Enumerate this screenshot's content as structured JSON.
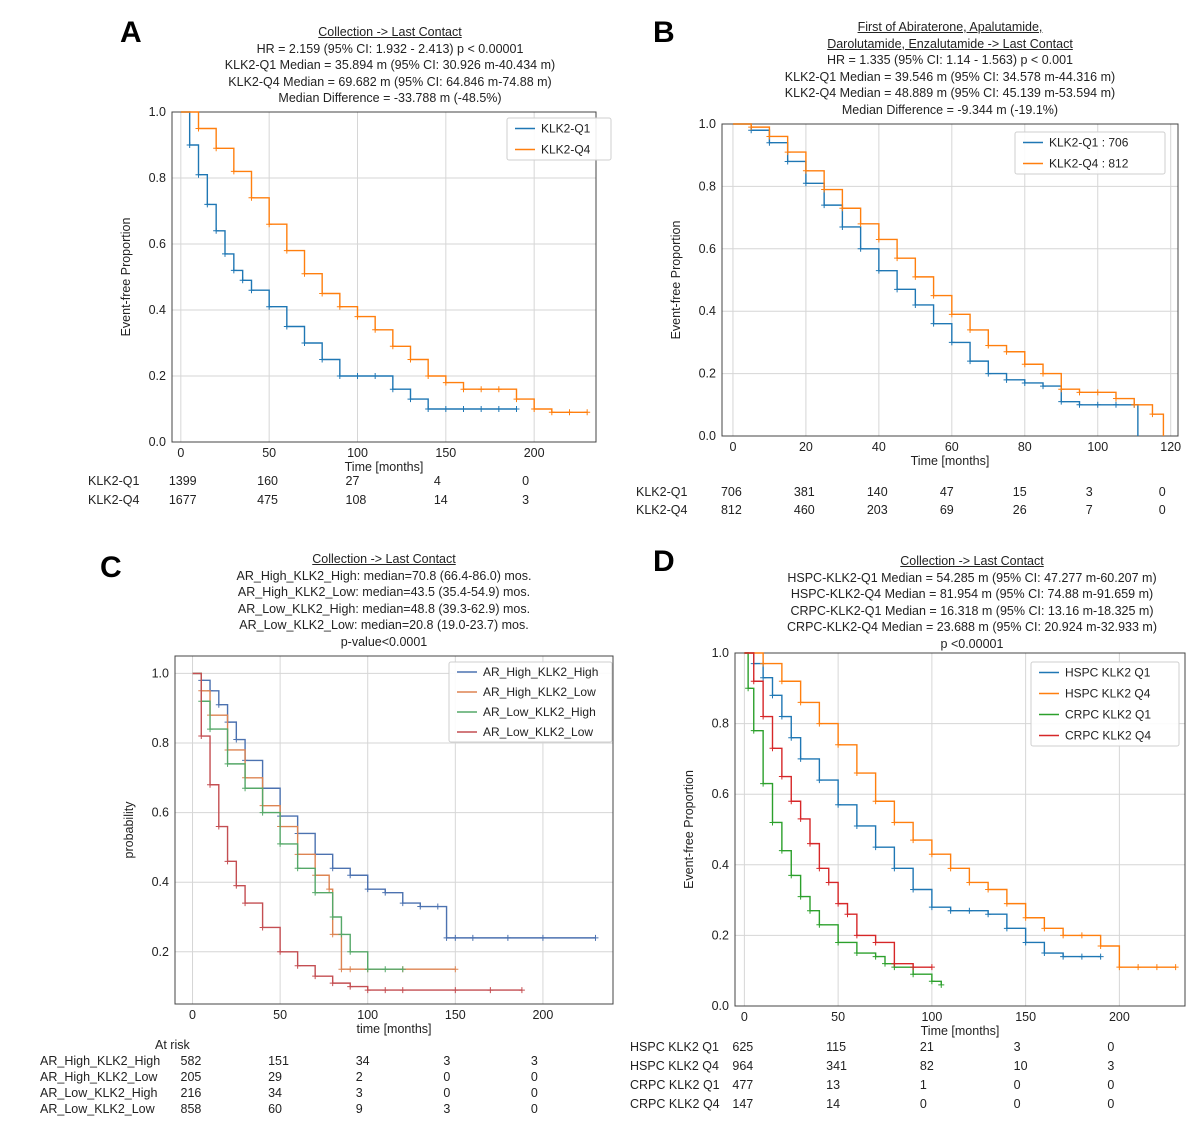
{
  "chart_data": [
    {
      "panel": "A",
      "type": "line",
      "titles": [
        "Collection -> Last Contact",
        "HR = 2.159 (95% CI: 1.932 - 2.413) p < 0.00001",
        "KLK2-Q1 Median = 35.894 m (95% CI: 30.926 m-40.434 m)",
        "KLK2-Q4 Median = 69.682 m (95% CI: 64.846 m-74.88 m)",
        "Median Difference = -33.788 m (-48.5%)"
      ],
      "xlabel": "Time [months]",
      "ylabel": "Event-free Proportion",
      "xlim": [
        -5,
        235
      ],
      "ylim": [
        0,
        1.0
      ],
      "xticks": [
        0,
        50,
        100,
        150,
        200
      ],
      "yticks": [
        0.0,
        0.2,
        0.4,
        0.6,
        0.8,
        1.0
      ],
      "grid": true,
      "legend_position": "top-right",
      "series": [
        {
          "name": "KLK2-Q1",
          "color": "#1f77b4",
          "x": [
            0,
            5,
            10,
            15,
            20,
            25,
            30,
            35,
            40,
            50,
            60,
            70,
            80,
            90,
            100,
            110,
            120,
            130,
            140,
            150,
            160,
            170,
            180,
            190
          ],
          "y": [
            1.0,
            0.9,
            0.81,
            0.72,
            0.64,
            0.57,
            0.52,
            0.49,
            0.46,
            0.41,
            0.35,
            0.3,
            0.25,
            0.2,
            0.2,
            0.2,
            0.16,
            0.13,
            0.1,
            0.1,
            0.1,
            0.1,
            0.1,
            0.1
          ]
        },
        {
          "name": "KLK2-Q4",
          "color": "#ff7f0e",
          "x": [
            0,
            10,
            20,
            30,
            40,
            50,
            60,
            70,
            80,
            90,
            100,
            110,
            120,
            130,
            140,
            150,
            160,
            170,
            180,
            190,
            200,
            210,
            220,
            230
          ],
          "y": [
            1.0,
            0.95,
            0.89,
            0.82,
            0.74,
            0.66,
            0.58,
            0.51,
            0.45,
            0.41,
            0.38,
            0.34,
            0.29,
            0.25,
            0.2,
            0.18,
            0.16,
            0.16,
            0.16,
            0.13,
            0.1,
            0.09,
            0.09,
            0.09
          ]
        }
      ],
      "at_risk": {
        "ticks": [
          0,
          50,
          100,
          150,
          200
        ],
        "rows": [
          {
            "label": "KLK2-Q1",
            "values": [
              "1399",
              "160",
              "27",
              "4",
              "0"
            ]
          },
          {
            "label": "KLK2-Q4",
            "values": [
              "1677",
              "475",
              "108",
              "14",
              "3"
            ]
          }
        ]
      }
    },
    {
      "panel": "B",
      "type": "line",
      "titles": [
        "First of Abiraterone, Apalutamide,",
        "Darolutamide, Enzalutamide -> Last Contact",
        "HR = 1.335 (95% CI: 1.14 - 1.563) p < 0.001",
        "KLK2-Q1 Median = 39.546 m (95% CI: 34.578 m-44.316 m)",
        "KLK2-Q4 Median = 48.889 m (95% CI: 45.139 m-53.594 m)",
        "Median Difference = -9.344 m (-19.1%)"
      ],
      "xlabel": "Time [months]",
      "ylabel": "Event-free Proportion",
      "xlim": [
        -3,
        122
      ],
      "ylim": [
        0,
        1.0
      ],
      "xticks": [
        0,
        20,
        40,
        60,
        80,
        100,
        120
      ],
      "yticks": [
        0.0,
        0.2,
        0.4,
        0.6,
        0.8,
        1.0
      ],
      "grid": true,
      "legend_position": "top-right",
      "series": [
        {
          "name": "KLK2-Q1 : 706",
          "color": "#1f77b4",
          "x": [
            0,
            5,
            10,
            15,
            20,
            25,
            30,
            35,
            40,
            45,
            50,
            55,
            60,
            65,
            70,
            75,
            80,
            85,
            90,
            95,
            100,
            105,
            110,
            111
          ],
          "y": [
            1.0,
            0.98,
            0.94,
            0.88,
            0.81,
            0.74,
            0.67,
            0.6,
            0.53,
            0.47,
            0.42,
            0.36,
            0.3,
            0.24,
            0.2,
            0.18,
            0.17,
            0.16,
            0.11,
            0.1,
            0.1,
            0.1,
            0.1,
            0.0
          ]
        },
        {
          "name": "KLK2-Q4 : 812",
          "color": "#ff7f0e",
          "x": [
            0,
            5,
            10,
            15,
            20,
            25,
            30,
            35,
            40,
            45,
            50,
            55,
            60,
            65,
            70,
            75,
            80,
            85,
            90,
            95,
            100,
            105,
            110,
            115,
            118
          ],
          "y": [
            1.0,
            0.99,
            0.96,
            0.91,
            0.85,
            0.79,
            0.73,
            0.68,
            0.63,
            0.57,
            0.51,
            0.45,
            0.39,
            0.34,
            0.29,
            0.27,
            0.23,
            0.2,
            0.15,
            0.14,
            0.14,
            0.12,
            0.1,
            0.07,
            0.0
          ]
        }
      ],
      "at_risk": {
        "ticks": [
          0,
          20,
          40,
          60,
          80,
          100,
          120
        ],
        "rows": [
          {
            "label": "KLK2-Q1",
            "values": [
              "706",
              "381",
              "140",
              "47",
              "15",
              "3",
              "0"
            ]
          },
          {
            "label": "KLK2-Q4",
            "values": [
              "812",
              "460",
              "203",
              "69",
              "26",
              "7",
              "0"
            ]
          }
        ]
      }
    },
    {
      "panel": "C",
      "type": "line",
      "titles": [
        "Collection -> Last Contact",
        "AR_High_KLK2_High: median=70.8 (66.4-86.0) mos.",
        "AR_High_KLK2_Low: median=43.5 (35.4-54.9) mos.",
        "AR_Low_KLK2_High: median=48.8 (39.3-62.9) mos.",
        "AR_Low_KLK2_Low: median=20.8 (19.0-23.7) mos.",
        "p-value<0.0001"
      ],
      "xlabel": "time [months]",
      "ylabel": "probability",
      "xlim": [
        -10,
        240
      ],
      "ylim": [
        0.05,
        1.05
      ],
      "xticks": [
        0,
        50,
        100,
        150,
        200
      ],
      "yticks": [
        0.2,
        0.4,
        0.6,
        0.8,
        1.0
      ],
      "grid": true,
      "legend_position": "top-right",
      "series": [
        {
          "name": "AR_High_KLK2_High",
          "color": "#4c72b0",
          "x": [
            0,
            5,
            10,
            15,
            20,
            25,
            30,
            40,
            50,
            60,
            70,
            80,
            90,
            100,
            110,
            120,
            130,
            140,
            145,
            150,
            160,
            180,
            200,
            230
          ],
          "y": [
            1.0,
            0.98,
            0.95,
            0.91,
            0.86,
            0.81,
            0.75,
            0.67,
            0.59,
            0.54,
            0.48,
            0.44,
            0.42,
            0.38,
            0.37,
            0.34,
            0.33,
            0.33,
            0.24,
            0.24,
            0.24,
            0.24,
            0.24,
            0.24
          ]
        },
        {
          "name": "AR_High_KLK2_Low",
          "color": "#dd8452",
          "x": [
            0,
            5,
            10,
            20,
            30,
            40,
            50,
            60,
            70,
            78,
            80,
            85,
            90,
            100,
            120,
            150
          ],
          "y": [
            1.0,
            0.95,
            0.88,
            0.78,
            0.7,
            0.62,
            0.56,
            0.48,
            0.42,
            0.38,
            0.25,
            0.15,
            0.15,
            0.15,
            0.15,
            0.15
          ]
        },
        {
          "name": "AR_Low_KLK2_High",
          "color": "#55a868",
          "x": [
            0,
            5,
            10,
            20,
            30,
            40,
            50,
            60,
            70,
            80,
            85,
            90,
            100,
            110,
            120
          ],
          "y": [
            1.0,
            0.92,
            0.84,
            0.74,
            0.67,
            0.6,
            0.51,
            0.44,
            0.37,
            0.3,
            0.25,
            0.2,
            0.15,
            0.15,
            0.15
          ]
        },
        {
          "name": "AR_Low_KLK2_Low",
          "color": "#c44e52",
          "x": [
            0,
            5,
            10,
            15,
            20,
            25,
            30,
            40,
            50,
            60,
            70,
            80,
            90,
            100,
            110,
            120,
            150,
            170,
            188
          ],
          "y": [
            1.0,
            0.82,
            0.68,
            0.56,
            0.46,
            0.39,
            0.34,
            0.27,
            0.2,
            0.16,
            0.13,
            0.11,
            0.1,
            0.09,
            0.09,
            0.09,
            0.09,
            0.09,
            0.09
          ]
        }
      ],
      "at_risk": {
        "header": "At risk",
        "ticks": [
          0,
          50,
          100,
          150,
          200
        ],
        "rows": [
          {
            "label": "AR_High_KLK2_High",
            "values": [
              "582",
              "151",
              "34",
              "3",
              "3"
            ]
          },
          {
            "label": "AR_High_KLK2_Low",
            "values": [
              "205",
              "29",
              "2",
              "0",
              "0"
            ]
          },
          {
            "label": "AR_Low_KLK2_High",
            "values": [
              "216",
              "34",
              "3",
              "0",
              "0"
            ]
          },
          {
            "label": "AR_Low_KLK2_Low",
            "values": [
              "858",
              "60",
              "9",
              "3",
              "0"
            ]
          }
        ]
      }
    },
    {
      "panel": "D",
      "type": "line",
      "titles": [
        "Collection -> Last Contact",
        "HSPC-KLK2-Q1  Median = 54.285 m (95% CI: 47.277 m-60.207 m)",
        "HSPC-KLK2-Q4 Median = 81.954 m (95% CI: 74.88 m-91.659 m)",
        "CRPC-KLK2-Q1 Median = 16.318 m (95% CI: 13.16 m-18.325 m)",
        "CRPC-KLK2-Q4 Median = 23.688 m (95% CI: 20.924 m-32.933 m)",
        "p <0.00001"
      ],
      "xlabel": "Time [months]",
      "ylabel": "Event-free Proportion",
      "xlim": [
        -5,
        235
      ],
      "ylim": [
        0,
        1.0
      ],
      "xticks": [
        0,
        50,
        100,
        150,
        200
      ],
      "yticks": [
        0.0,
        0.2,
        0.4,
        0.6,
        0.8,
        1.0
      ],
      "grid": true,
      "legend_position": "top-right",
      "series": [
        {
          "name": "HSPC KLK2 Q1",
          "color": "#1f77b4",
          "x": [
            0,
            5,
            10,
            15,
            20,
            25,
            30,
            40,
            50,
            60,
            70,
            80,
            90,
            100,
            110,
            120,
            130,
            140,
            150,
            160,
            170,
            180,
            190
          ],
          "y": [
            1.0,
            0.97,
            0.93,
            0.88,
            0.82,
            0.76,
            0.7,
            0.64,
            0.57,
            0.51,
            0.45,
            0.39,
            0.33,
            0.28,
            0.27,
            0.27,
            0.26,
            0.22,
            0.18,
            0.15,
            0.14,
            0.14,
            0.14
          ]
        },
        {
          "name": "HSPC KLK2 Q4",
          "color": "#ff7f0e",
          "x": [
            0,
            10,
            20,
            30,
            40,
            50,
            60,
            70,
            80,
            90,
            100,
            110,
            120,
            130,
            140,
            150,
            160,
            170,
            180,
            190,
            200,
            210,
            220,
            230
          ],
          "y": [
            1.0,
            0.97,
            0.92,
            0.86,
            0.8,
            0.74,
            0.66,
            0.58,
            0.52,
            0.47,
            0.43,
            0.39,
            0.35,
            0.33,
            0.29,
            0.25,
            0.22,
            0.2,
            0.2,
            0.17,
            0.11,
            0.11,
            0.11,
            0.11
          ]
        },
        {
          "name": "CRPC KLK2 Q1",
          "color": "#2ca02c",
          "x": [
            0,
            2,
            5,
            10,
            15,
            20,
            25,
            30,
            35,
            40,
            50,
            60,
            70,
            75,
            80,
            90,
            100,
            105
          ],
          "y": [
            1.0,
            0.9,
            0.78,
            0.63,
            0.52,
            0.44,
            0.37,
            0.31,
            0.27,
            0.23,
            0.18,
            0.15,
            0.14,
            0.12,
            0.11,
            0.09,
            0.07,
            0.06
          ]
        },
        {
          "name": "CRPC KLK2 Q4",
          "color": "#d62728",
          "x": [
            0,
            5,
            10,
            15,
            20,
            25,
            30,
            35,
            40,
            45,
            50,
            55,
            60,
            70,
            80,
            90,
            100
          ],
          "y": [
            1.0,
            0.92,
            0.82,
            0.73,
            0.65,
            0.58,
            0.53,
            0.46,
            0.39,
            0.35,
            0.29,
            0.26,
            0.2,
            0.18,
            0.12,
            0.11,
            0.11
          ]
        }
      ],
      "at_risk": {
        "ticks": [
          0,
          50,
          100,
          150,
          200
        ],
        "rows": [
          {
            "label": "HSPC KLK2 Q1",
            "values": [
              "625",
              "115",
              "21",
              "3",
              "0"
            ]
          },
          {
            "label": "HSPC KLK2 Q4",
            "values": [
              "964",
              "341",
              "82",
              "10",
              "3"
            ]
          },
          {
            "label": "CRPC KLK2 Q1",
            "values": [
              "477",
              "13",
              "1",
              "0",
              "0"
            ]
          },
          {
            "label": "CRPC KLK2 Q4",
            "values": [
              "147",
              "14",
              "0",
              "0",
              "0"
            ]
          }
        ]
      }
    }
  ]
}
